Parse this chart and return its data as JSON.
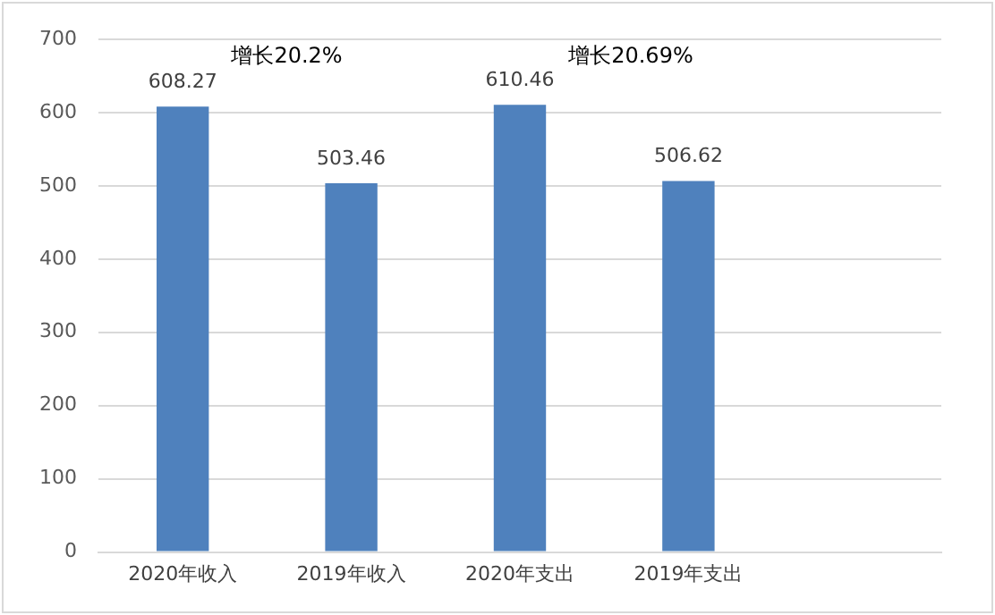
{
  "chart_data": {
    "type": "bar",
    "categories": [
      "2020年收入",
      "2019年收入",
      "2020年支出",
      "2019年支出",
      null
    ],
    "values": [
      608.27,
      503.46,
      610.46,
      506.62,
      null
    ],
    "color": "#4f81bd",
    "ylim": [
      0,
      700
    ],
    "yticks": [
      0,
      100,
      200,
      300,
      400,
      500,
      600,
      700
    ],
    "grid": "y",
    "data_labels": true,
    "annotations": [
      "增长20.2%",
      "增长20.69%"
    ]
  }
}
